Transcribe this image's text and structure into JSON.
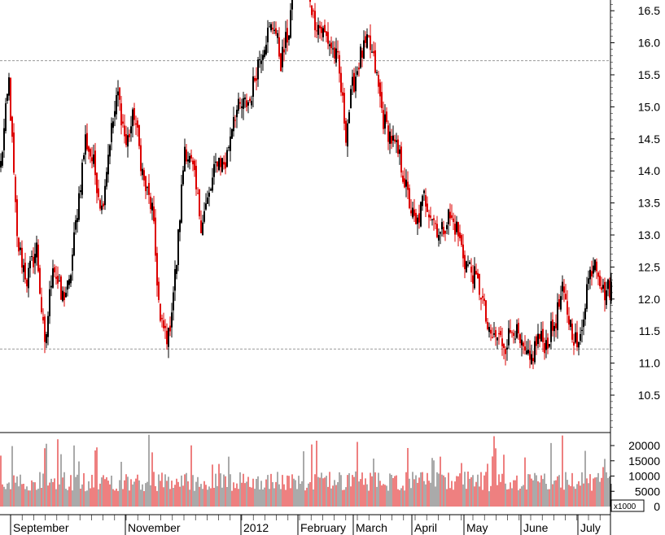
{
  "chart_data": [
    {
      "type": "candlestick",
      "ylim": [
        10.0,
        18.9
      ],
      "yticks": [
        "10.5",
        "11.0",
        "11.5",
        "12.0",
        "12.5",
        "13.0",
        "13.5",
        "14.0",
        "14.5",
        "15.0",
        "15.5",
        "16.0",
        "16.5",
        "17.0",
        "17.5",
        "18.0",
        "18.5"
      ],
      "reference_lines": [
        15.72,
        11.22
      ],
      "grid": false,
      "colors": {
        "up": "#000000",
        "down": "#dd0000",
        "reference": "#999999"
      },
      "keypoints": [
        [
          0,
          14.1
        ],
        [
          5,
          15.4
        ],
        [
          10,
          12.9
        ],
        [
          16,
          12.3
        ],
        [
          22,
          12.8
        ],
        [
          27,
          11.2
        ],
        [
          32,
          12.6
        ],
        [
          37,
          12.0
        ],
        [
          42,
          12.2
        ],
        [
          47,
          13.4
        ],
        [
          52,
          14.5
        ],
        [
          57,
          14.1
        ],
        [
          62,
          13.4
        ],
        [
          67,
          14.5
        ],
        [
          72,
          15.2
        ],
        [
          77,
          14.4
        ],
        [
          82,
          14.9
        ],
        [
          88,
          13.8
        ],
        [
          93,
          13.4
        ],
        [
          98,
          11.6
        ],
        [
          103,
          11.4
        ],
        [
          108,
          12.6
        ],
        [
          113,
          14.4
        ],
        [
          118,
          14.0
        ],
        [
          123,
          13.2
        ],
        [
          128,
          13.6
        ],
        [
          133,
          14.2
        ],
        [
          138,
          14.1
        ],
        [
          143,
          14.9
        ],
        [
          148,
          15.0
        ],
        [
          153,
          15.1
        ],
        [
          158,
          15.7
        ],
        [
          163,
          16.1
        ],
        [
          168,
          16.3
        ],
        [
          172,
          15.7
        ],
        [
          177,
          16.2
        ],
        [
          182,
          17.6
        ],
        [
          187,
          17.2
        ],
        [
          192,
          16.4
        ],
        [
          197,
          16.2
        ],
        [
          202,
          16.0
        ],
        [
          207,
          15.7
        ],
        [
          212,
          14.6
        ],
        [
          216,
          15.3
        ],
        [
          221,
          15.8
        ],
        [
          226,
          16.0
        ],
        [
          230,
          15.6
        ],
        [
          235,
          14.8
        ],
        [
          240,
          14.5
        ],
        [
          245,
          14.2
        ],
        [
          250,
          13.6
        ],
        [
          255,
          13.1
        ],
        [
          260,
          13.6
        ],
        [
          265,
          13.3
        ],
        [
          270,
          13.0
        ],
        [
          275,
          13.3
        ],
        [
          280,
          13.1
        ],
        [
          285,
          12.6
        ],
        [
          290,
          12.4
        ],
        [
          295,
          12.1
        ],
        [
          300,
          11.4
        ],
        [
          305,
          11.4
        ],
        [
          310,
          11.3
        ],
        [
          315,
          11.6
        ],
        [
          320,
          11.2
        ],
        [
          325,
          11.0
        ],
        [
          330,
          11.4
        ],
        [
          335,
          11.3
        ],
        [
          340,
          11.6
        ],
        [
          345,
          12.1
        ],
        [
          350,
          11.6
        ],
        [
          355,
          11.2
        ],
        [
          360,
          12.2
        ],
        [
          365,
          12.7
        ],
        [
          370,
          12.1
        ],
        [
          375,
          12.2
        ]
      ],
      "volume": {
        "ylim": [
          0,
          24000
        ],
        "yticks": [
          "0",
          "5000",
          "10000",
          "15000",
          "20000"
        ],
        "unit": "x1000"
      },
      "x_labels": [
        "September",
        "November",
        "2012",
        "February",
        "March",
        "April",
        "May",
        "June",
        "July"
      ],
      "n_days": 376
    }
  ]
}
